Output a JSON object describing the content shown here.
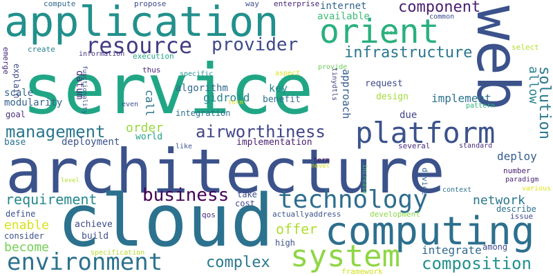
{
  "words": [
    {
      "text": "service",
      "color": "#21a685"
    },
    {
      "text": "architecture",
      "color": "#3b528b"
    },
    {
      "text": "cloud",
      "color": "#2c728e"
    },
    {
      "text": "web",
      "color": "#3b528b"
    },
    {
      "text": "application",
      "color": "#22908c"
    },
    {
      "text": "computing",
      "color": "#2d6f8e"
    },
    {
      "text": "orient",
      "color": "#2ab07f"
    },
    {
      "text": "platform",
      "color": "#3b528b"
    },
    {
      "text": "system",
      "color": "#8ed645"
    },
    {
      "text": "environment",
      "color": "#2c728e"
    },
    {
      "text": "resource",
      "color": "#433d84"
    },
    {
      "text": "technology",
      "color": "#2e6d8e"
    },
    {
      "text": "airworthiness",
      "color": "#404588"
    },
    {
      "text": "management",
      "color": "#2a778e"
    },
    {
      "text": "provider",
      "color": "#3e4989"
    },
    {
      "text": "business",
      "color": "#440154"
    },
    {
      "text": "infrastructure",
      "color": "#2a768e"
    },
    {
      "text": "composition",
      "color": "#21908d"
    },
    {
      "text": "component",
      "color": "#481f70"
    },
    {
      "text": "complex",
      "color": "#2a788e"
    },
    {
      "text": "solution",
      "color": "#2a788e"
    },
    {
      "text": "requirement",
      "color": "#24878e"
    },
    {
      "text": "allow",
      "color": "#26828e"
    },
    {
      "text": "order",
      "color": "#98d83e"
    },
    {
      "text": "offer",
      "color": "#b0dd2f"
    },
    {
      "text": "become",
      "color": "#75d054"
    },
    {
      "text": "enable",
      "color": "#d8e219"
    },
    {
      "text": "network",
      "color": "#2a788e"
    },
    {
      "text": "deploy",
      "color": "#365c8d"
    },
    {
      "text": "integrate",
      "color": "#31688e"
    },
    {
      "text": "implement",
      "color": "#2c728e"
    },
    {
      "text": "gidroid",
      "color": "#26828e"
    },
    {
      "text": "algorithm",
      "color": "#31688e"
    },
    {
      "text": "scale",
      "color": "#33638d"
    },
    {
      "text": "modularity",
      "color": "#33638d"
    },
    {
      "text": "explain",
      "color": "#3e4a89"
    },
    {
      "text": "emerge",
      "color": "#482878"
    },
    {
      "text": "goal",
      "color": "#472c7a"
    },
    {
      "text": "call",
      "color": "#2c728e"
    },
    {
      "text": "datum",
      "color": "#46307e"
    },
    {
      "text": "approach",
      "color": "#365c8d"
    },
    {
      "text": "key",
      "color": "#26828e"
    },
    {
      "text": "benefit",
      "color": "#2d708e"
    },
    {
      "text": "request",
      "color": "#3e4a89"
    },
    {
      "text": "design",
      "color": "#a2da37"
    },
    {
      "text": "due",
      "color": "#414487"
    },
    {
      "text": "integration",
      "color": "#2d708e"
    },
    {
      "text": "implementation",
      "color": "#481c6e"
    },
    {
      "text": "deployment",
      "color": "#3b528b"
    },
    {
      "text": "world",
      "color": "#1f9e89"
    },
    {
      "text": "base",
      "color": "#2c728e"
    },
    {
      "text": "available",
      "color": "#3dbc74"
    },
    {
      "text": "internet",
      "color": "#32658e"
    },
    {
      "text": "compute",
      "color": "#31688e"
    },
    {
      "text": "propose",
      "color": "#3e4989"
    },
    {
      "text": "way",
      "color": "#3b528b"
    },
    {
      "text": "enterprise",
      "color": "#482173"
    },
    {
      "text": "common",
      "color": "#3e4989"
    },
    {
      "text": "soa",
      "color": "#35b779"
    },
    {
      "text": "create",
      "color": "#26828e"
    },
    {
      "text": "information",
      "color": "#46337f"
    },
    {
      "text": "execution",
      "color": "#22a884"
    },
    {
      "text": "thus",
      "color": "#482475"
    },
    {
      "text": "specific",
      "color": "#21918c"
    },
    {
      "text": "aspect",
      "color": "#dde318"
    },
    {
      "text": "provide",
      "color": "#6ccd5a"
    },
    {
      "text": "tinydtls",
      "color": "#424086"
    },
    {
      "text": "select",
      "color": "#b5de2b"
    },
    {
      "text": "functionality",
      "color": "#3b528b"
    },
    {
      "text": "even",
      "color": "#3b528b"
    },
    {
      "text": "pattern",
      "color": "#2db27d"
    },
    {
      "text": "form",
      "color": "#dde318"
    },
    {
      "text": "like",
      "color": "#3b528b"
    },
    {
      "text": "standard",
      "color": "#472d7b"
    },
    {
      "text": "term",
      "color": "#471365"
    },
    {
      "text": "novel",
      "color": "#d2e21b"
    },
    {
      "text": "several",
      "color": "#472a7a"
    },
    {
      "text": "increase",
      "color": "#4ac16d"
    },
    {
      "text": "device",
      "color": "#33638d"
    },
    {
      "text": "number",
      "color": "#481f70"
    },
    {
      "text": "paradigm",
      "color": "#482576"
    },
    {
      "text": "level",
      "color": "#b5de2b"
    },
    {
      "text": "take",
      "color": "#3e4989"
    },
    {
      "text": "cost",
      "color": "#3e4989"
    },
    {
      "text": "context",
      "color": "#2c728e"
    },
    {
      "text": "various",
      "color": "#dde318"
    },
    {
      "text": "describe",
      "color": "#2c728e"
    },
    {
      "text": "define",
      "color": "#3b528b"
    },
    {
      "text": "consider",
      "color": "#3b528b"
    },
    {
      "text": "achieve",
      "color": "#3e4989"
    },
    {
      "text": "build",
      "color": "#3b528b"
    },
    {
      "text": "qos",
      "color": "#472a7a"
    },
    {
      "text": "actuallyaddress",
      "color": "#3b528b"
    },
    {
      "text": "development",
      "color": "#8bd646"
    },
    {
      "text": "issue",
      "color": "#3e4989"
    },
    {
      "text": "among",
      "color": "#3e4989"
    },
    {
      "text": "high",
      "color": "#3b528b"
    },
    {
      "text": "specification",
      "color": "#b5de2b"
    },
    {
      "text": "framework",
      "color": "#d0e11c"
    }
  ]
}
